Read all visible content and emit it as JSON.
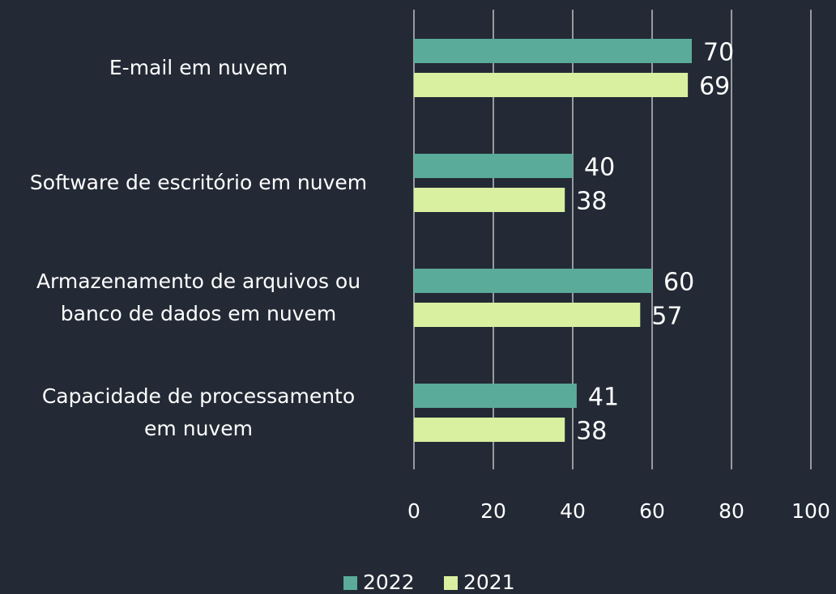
{
  "chart_data": {
    "type": "barh",
    "categories": [
      "E-mail em nuvem",
      "Software de escritório em nuvem",
      "Armazenamento de arquivos ou\nbanco de dados em nuvem",
      "Capacidade de processamento\nem nuvem"
    ],
    "series": [
      {
        "name": "2022",
        "color": "#5aab9a",
        "values": [
          70,
          40,
          60,
          41
        ]
      },
      {
        "name": "2021",
        "color": "#d9f0a0",
        "values": [
          69,
          38,
          57,
          38
        ]
      }
    ],
    "xlim": [
      0,
      100
    ],
    "xticks": [
      0,
      20,
      40,
      60,
      80,
      100
    ],
    "grid": true,
    "legend": "bottom"
  }
}
